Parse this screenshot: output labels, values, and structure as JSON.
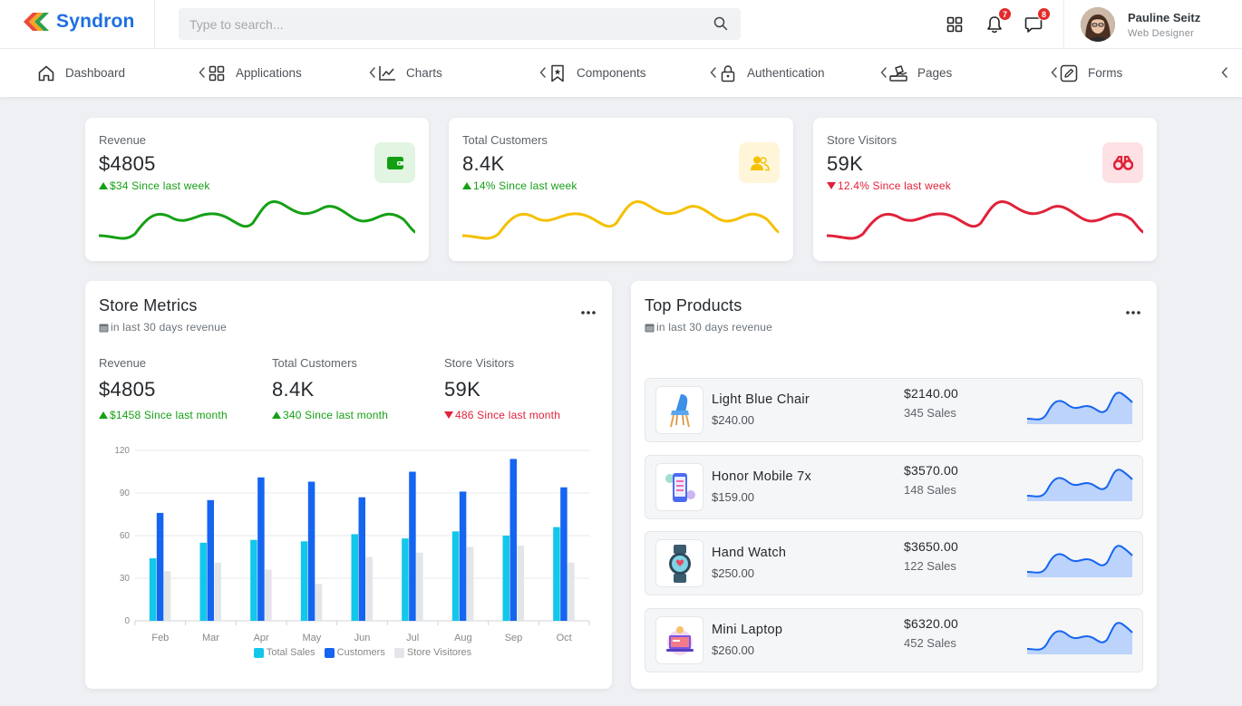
{
  "app": {
    "name": "Syndron"
  },
  "search": {
    "placeholder": "Type to search..."
  },
  "header": {
    "notifications_count": "7",
    "messages_count": "8",
    "user": {
      "name": "Pauline Seitz",
      "role": "Web Designer"
    }
  },
  "nav": [
    {
      "label": "Dashboard",
      "icon": "home-icon"
    },
    {
      "label": "Applications",
      "icon": "grid-icon"
    },
    {
      "label": "Charts",
      "icon": "line-chart-icon"
    },
    {
      "label": "Components",
      "icon": "bookmark-icon"
    },
    {
      "label": "Authentication",
      "icon": "lock-icon"
    },
    {
      "label": "Pages",
      "icon": "pages-icon"
    },
    {
      "label": "Forms",
      "icon": "edit-icon"
    }
  ],
  "stats": [
    {
      "title": "Revenue",
      "value": "$4805",
      "change": "$34 Since last week",
      "trend": "up",
      "color": "#15a015",
      "icon_bg": "#e2f5e2",
      "icon": "wallet-icon"
    },
    {
      "title": "Total Customers",
      "value": "8.4K",
      "change": "14% Since last week",
      "trend": "up",
      "color": "#f5c000",
      "icon_bg": "#fff6d9",
      "icon": "users-icon"
    },
    {
      "title": "Store Visitors",
      "value": "59K",
      "change": "12.4% Since last week",
      "trend": "down",
      "color": "#e0223a",
      "icon_bg": "#fde1e4",
      "icon": "binoculars-icon"
    }
  ],
  "store_metrics": {
    "title": "Store Metrics",
    "subtitle": "in last 30 days revenue",
    "metrics": [
      {
        "title": "Revenue",
        "value": "$4805",
        "change": "$1458 Since last month",
        "trend": "up"
      },
      {
        "title": "Total Customers",
        "value": "8.4K",
        "change": "340 Since last month",
        "trend": "up"
      },
      {
        "title": "Store Visitors",
        "value": "59K",
        "change": "486 Since last month",
        "trend": "down"
      }
    ]
  },
  "chart_data": {
    "type": "bar",
    "categories": [
      "Feb",
      "Mar",
      "Apr",
      "May",
      "Jun",
      "Jul",
      "Aug",
      "Sep",
      "Oct"
    ],
    "series": [
      {
        "name": "Total Sales",
        "color": "#12c7ea",
        "values": [
          44,
          55,
          57,
          56,
          61,
          58,
          63,
          60,
          66
        ]
      },
      {
        "name": "Customers",
        "color": "#1565f0",
        "values": [
          76,
          85,
          101,
          98,
          87,
          105,
          91,
          114,
          94
        ]
      },
      {
        "name": "Store Visitores",
        "color": "#e3e5e8",
        "values": [
          35,
          41,
          36,
          26,
          45,
          48,
          52,
          53,
          41
        ]
      }
    ],
    "yticks": [
      0,
      30,
      60,
      90,
      120
    ],
    "ylim": [
      0,
      120
    ],
    "legend_position": "bottom",
    "grid": true
  },
  "top_products": {
    "title": "Top Products",
    "subtitle": "in last 30 days revenue",
    "items": [
      {
        "name": "Light Blue Chair",
        "price": "$240.00",
        "total": "$2140.00",
        "sales": "345 Sales",
        "icon": "chair-icon"
      },
      {
        "name": "Honor Mobile 7x",
        "price": "$159.00",
        "total": "$3570.00",
        "sales": "148 Sales",
        "icon": "mobile-icon"
      },
      {
        "name": "Hand Watch",
        "price": "$250.00",
        "total": "$3650.00",
        "sales": "122 Sales",
        "icon": "watch-icon"
      },
      {
        "name": "Mini Laptop",
        "price": "$260.00",
        "total": "$6320.00",
        "sales": "452 Sales",
        "icon": "laptop-icon"
      }
    ]
  }
}
